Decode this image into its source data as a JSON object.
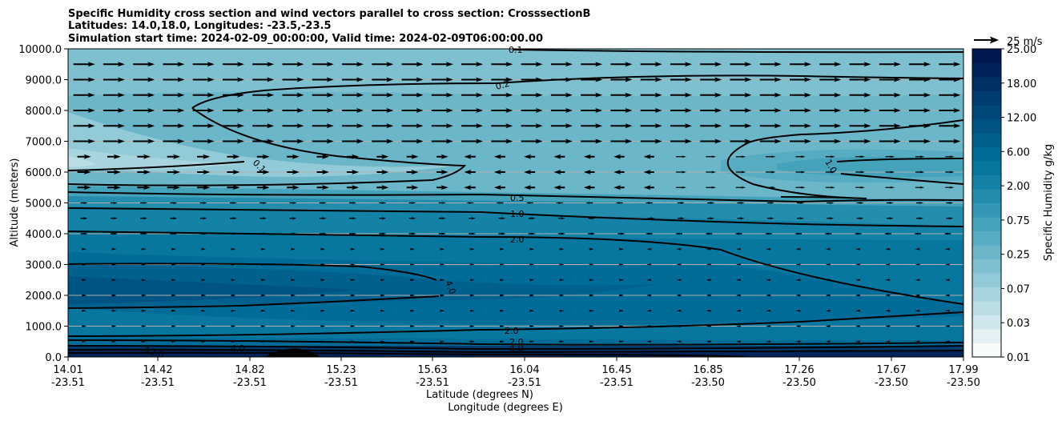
{
  "chart_data": {
    "type": "heatmap",
    "title_lines": [
      "Specific Humidity cross section and wind vectors parallel to cross section: CrosssectionB",
      "Latitudes: 14.0,18.0, Longitudes: -23.5,-23.5",
      "Simulation start time: 2024-02-09_00:00:00, Valid time: 2024-02-09T06:00:00.00"
    ],
    "ylabel": "Altitude (meters)",
    "xlabel_lat": "Latitude (degrees N)",
    "xlabel_lon": "Longitude (degrees E)",
    "ylim": [
      0,
      10000
    ],
    "y_ticks": [
      "0.0",
      "1000.0",
      "2000.0",
      "3000.0",
      "4000.0",
      "5000.0",
      "6000.0",
      "7000.0",
      "8000.0",
      "9000.0",
      "10000.0"
    ],
    "x_tick_lat": [
      "14.01",
      "14.42",
      "14.82",
      "15.23",
      "15.63",
      "16.04",
      "16.45",
      "16.85",
      "17.26",
      "17.67",
      "17.99"
    ],
    "x_tick_lon": [
      "-23.51",
      "-23.51",
      "-23.51",
      "-23.51",
      "-23.51",
      "-23.51",
      "-23.51",
      "-23.50",
      "-23.50",
      "-23.50",
      "-23.50"
    ],
    "grid": "horizontal",
    "colorbar": {
      "label": "Specific Humidity g/kg",
      "ticks": [
        "0.01",
        "0.03",
        "0.07",
        "0.25",
        "0.75",
        "2.00",
        "6.00",
        "12.00",
        "18.00",
        "25.00"
      ],
      "colors": [
        "#f7fbfc",
        "#e3f1f4",
        "#cfe7ec",
        "#bbdee5",
        "#a7d4de",
        "#93cad7",
        "#7fc0d0",
        "#6bb6c9",
        "#57acc2",
        "#45a2bb",
        "#3497b4",
        "#248cad",
        "#1482a6",
        "#07779f",
        "#006c97",
        "#00608e",
        "#005484",
        "#00487a",
        "#003c6f",
        "#003064",
        "#002459",
        "#00184d"
      ]
    },
    "contour_labels": [
      "0.1",
      "0.2",
      "0.1",
      "0.5",
      "1.0",
      "2.0",
      "4.0",
      "1.0",
      "2.0",
      "2.0",
      "4.0",
      "8.0",
      "12.0",
      "4.0"
    ],
    "quiver_key": "25 m/s",
    "wind_rows_m": [
      500,
      1000,
      1500,
      2000,
      2500,
      3000,
      3500,
      4000,
      4500,
      5000,
      5500,
      6000,
      6500,
      7000,
      7500,
      8000,
      8500,
      9000,
      9500
    ]
  }
}
